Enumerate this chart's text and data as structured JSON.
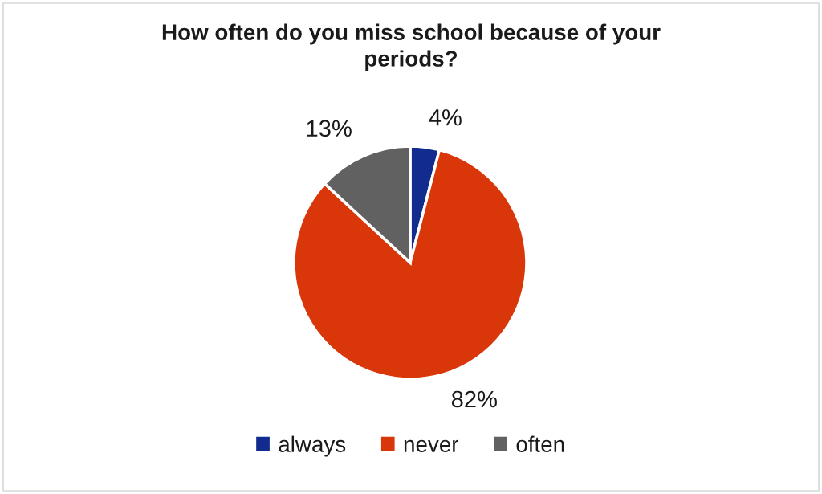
{
  "chart_data": {
    "type": "pie",
    "title": "How often do you miss school because of your periods?",
    "categories": [
      "always",
      "never",
      "often"
    ],
    "values": [
      4,
      82,
      13
    ],
    "colors": [
      "#112c8e",
      "#d93609",
      "#616161"
    ],
    "value_labels": [
      "4%",
      "82%",
      "13%"
    ],
    "legend": "bottom"
  }
}
